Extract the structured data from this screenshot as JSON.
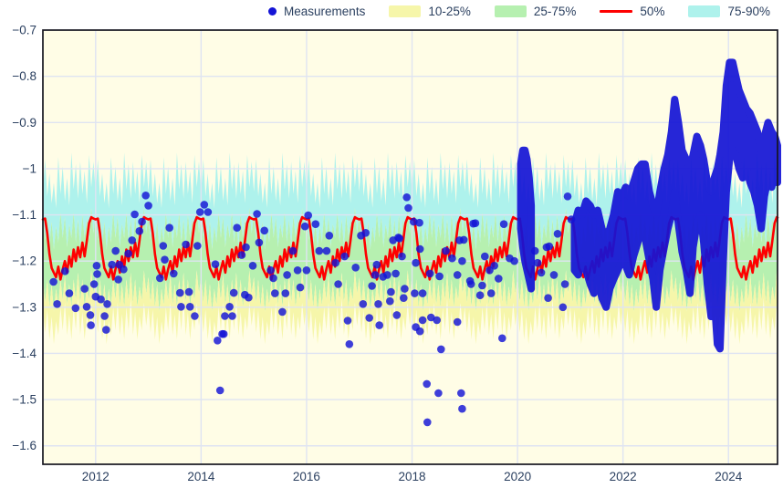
{
  "chart_data": {
    "type": "scatter",
    "title": "",
    "xlabel": "",
    "ylabel": "",
    "xlim": [
      2011.0,
      2024.93
    ],
    "ylim": [
      -1.64,
      -0.7
    ],
    "grid": true,
    "legend_position": "top",
    "xticks": [
      {
        "v": 2012,
        "label": "2012"
      },
      {
        "v": 2014,
        "label": "2014"
      },
      {
        "v": 2016,
        "label": "2016"
      },
      {
        "v": 2018,
        "label": "2018"
      },
      {
        "v": 2020,
        "label": "2020"
      },
      {
        "v": 2022,
        "label": "2022"
      },
      {
        "v": 2024,
        "label": "2024"
      }
    ],
    "yticks": [
      {
        "v": -0.7,
        "label": "−0.7"
      },
      {
        "v": -0.8,
        "label": "−0.8"
      },
      {
        "v": -0.9,
        "label": "−0.9"
      },
      {
        "v": -1.0,
        "label": "−1"
      },
      {
        "v": -1.1,
        "label": "−1.1"
      },
      {
        "v": -1.2,
        "label": "−1.2"
      },
      {
        "v": -1.3,
        "label": "−1.3"
      },
      {
        "v": -1.4,
        "label": "−1.4"
      },
      {
        "v": -1.5,
        "label": "−1.5"
      },
      {
        "v": -1.6,
        "label": "−1.6"
      }
    ],
    "legend": [
      {
        "label": "Measurements",
        "type": "marker",
        "color_key": "measurements"
      },
      {
        "label": "10-25%",
        "type": "band",
        "color_key": "band_10_25"
      },
      {
        "label": "25-75%",
        "type": "band",
        "color_key": "band_25_75"
      },
      {
        "label": "50%",
        "type": "line",
        "color_key": "median"
      },
      {
        "label": "75-90%",
        "type": "band",
        "color_key": "band_75_90"
      }
    ],
    "colors": {
      "plot_bg": "#fffde6",
      "grid": "#dfe4f2",
      "border": "#16161f",
      "tick_text": "#2a3f5f",
      "measurements": "#1414d6",
      "band_10_25": "#f6f6aa",
      "band_25_75": "#b6f0b0",
      "median": "#fe0000",
      "band_75_90": "#aef2ec"
    },
    "climatology": {
      "description": "Seasonal percentile climatology, repeated every calendar year 2011-2025; 24 samples per year starting Jan 1",
      "samples_per_year": 24,
      "p10": [
        -1.3,
        -1.355,
        -1.305,
        -1.37,
        -1.32,
        -1.38,
        -1.33,
        -1.36,
        -1.3,
        -1.35,
        -1.29,
        -1.36,
        -1.315,
        -1.37,
        -1.3,
        -1.35,
        -1.28,
        -1.36,
        -1.31,
        -1.37,
        -1.32,
        -1.35,
        -1.29,
        -1.34
      ],
      "p25": [
        -1.235,
        -1.29,
        -1.24,
        -1.3,
        -1.25,
        -1.31,
        -1.26,
        -1.295,
        -1.24,
        -1.285,
        -1.23,
        -1.295,
        -1.25,
        -1.3,
        -1.24,
        -1.285,
        -1.225,
        -1.29,
        -1.24,
        -1.3,
        -1.255,
        -1.285,
        -1.22,
        -1.27
      ],
      "p50": [
        -1.11,
        -1.108,
        -1.14,
        -1.185,
        -1.215,
        -1.225,
        -1.235,
        -1.212,
        -1.24,
        -1.218,
        -1.2,
        -1.225,
        -1.19,
        -1.212,
        -1.175,
        -1.2,
        -1.17,
        -1.192,
        -1.16,
        -1.19,
        -1.155,
        -1.118,
        -1.105,
        -1.108
      ],
      "p75": [
        -1.1,
        -1.155,
        -1.105,
        -1.165,
        -1.115,
        -1.175,
        -1.125,
        -1.16,
        -1.095,
        -1.15,
        -1.105,
        -1.17,
        -1.12,
        -1.15,
        -1.095,
        -1.16,
        -1.11,
        -1.17,
        -1.1,
        -1.15,
        -1.11,
        -1.155,
        -1.085,
        -1.14
      ],
      "p90": [
        -1.05,
        -0.98,
        -1.06,
        -1.01,
        -1.075,
        -1.03,
        -1.085,
        -0.975,
        -1.055,
        -0.995,
        -1.07,
        -1.02,
        -1.08,
        -0.965,
        -1.045,
        -0.99,
        -1.065,
        -0.985,
        -1.055,
        -1.005,
        -1.075,
        -0.97,
        -1.04,
        -0.985
      ]
    },
    "measurements_sparse": [
      [
        2011.2,
        -1.245
      ],
      [
        2011.27,
        -1.293
      ],
      [
        2011.42,
        -1.222
      ],
      [
        2011.5,
        -1.27
      ],
      [
        2011.62,
        -1.302
      ],
      [
        2011.79,
        -1.26
      ],
      [
        2011.83,
        -1.299
      ],
      [
        2011.9,
        -1.317
      ],
      [
        2011.91,
        -1.339
      ],
      [
        2011.97,
        -1.25
      ],
      [
        2012.0,
        -1.277
      ],
      [
        2012.02,
        -1.21
      ],
      [
        2012.03,
        -1.228
      ],
      [
        2012.1,
        -1.283
      ],
      [
        2012.17,
        -1.319
      ],
      [
        2012.2,
        -1.349
      ],
      [
        2012.22,
        -1.293
      ],
      [
        2012.31,
        -1.208
      ],
      [
        2012.38,
        -1.178
      ],
      [
        2012.43,
        -1.24
      ],
      [
        2012.45,
        -1.208
      ],
      [
        2012.53,
        -1.218
      ],
      [
        2012.62,
        -1.184
      ],
      [
        2012.69,
        -1.155
      ],
      [
        2012.74,
        -1.099
      ],
      [
        2012.83,
        -1.135
      ],
      [
        2012.88,
        -1.115
      ],
      [
        2012.95,
        -1.058
      ],
      [
        2013.0,
        -1.08
      ],
      [
        2013.22,
        -1.237
      ],
      [
        2013.28,
        -1.167
      ],
      [
        2013.31,
        -1.197
      ],
      [
        2013.4,
        -1.128
      ],
      [
        2013.48,
        -1.227
      ],
      [
        2013.6,
        -1.269
      ],
      [
        2013.62,
        -1.299
      ],
      [
        2013.71,
        -1.164
      ],
      [
        2013.77,
        -1.267
      ],
      [
        2013.79,
        -1.299
      ],
      [
        2013.88,
        -1.319
      ],
      [
        2013.93,
        -1.167
      ],
      [
        2013.98,
        -1.094
      ],
      [
        2014.06,
        -1.078
      ],
      [
        2014.13,
        -1.094
      ],
      [
        2014.27,
        -1.207
      ],
      [
        2014.31,
        -1.372
      ],
      [
        2014.36,
        -1.48
      ],
      [
        2014.4,
        -1.358
      ],
      [
        2014.43,
        -1.358
      ],
      [
        2014.45,
        -1.319
      ],
      [
        2014.54,
        -1.299
      ],
      [
        2014.59,
        -1.319
      ],
      [
        2014.62,
        -1.269
      ],
      [
        2014.68,
        -1.128
      ],
      [
        2014.77,
        -1.187
      ],
      [
        2014.83,
        -1.273
      ],
      [
        2014.85,
        -1.17
      ],
      [
        2014.9,
        -1.279
      ],
      [
        2014.98,
        -1.21
      ],
      [
        2015.06,
        -1.098
      ],
      [
        2015.1,
        -1.16
      ],
      [
        2015.2,
        -1.134
      ],
      [
        2015.32,
        -1.22
      ],
      [
        2015.37,
        -1.237
      ],
      [
        2015.4,
        -1.27
      ],
      [
        2015.54,
        -1.31
      ],
      [
        2015.6,
        -1.27
      ],
      [
        2015.63,
        -1.23
      ],
      [
        2015.74,
        -1.178
      ],
      [
        2015.83,
        -1.22
      ],
      [
        2015.88,
        -1.257
      ],
      [
        2015.97,
        -1.125
      ],
      [
        2016.0,
        -1.22
      ],
      [
        2016.03,
        -1.101
      ],
      [
        2016.17,
        -1.12
      ],
      [
        2016.24,
        -1.178
      ],
      [
        2016.38,
        -1.178
      ],
      [
        2016.43,
        -1.145
      ],
      [
        2016.55,
        -1.204
      ],
      [
        2016.6,
        -1.25
      ],
      [
        2016.72,
        -1.19
      ],
      [
        2016.78,
        -1.329
      ],
      [
        2016.81,
        -1.38
      ],
      [
        2016.93,
        -1.214
      ],
      [
        2017.03,
        -1.145
      ],
      [
        2017.07,
        -1.293
      ],
      [
        2017.12,
        -1.139
      ],
      [
        2017.19,
        -1.323
      ],
      [
        2017.24,
        -1.254
      ],
      [
        2017.3,
        -1.23
      ],
      [
        2017.33,
        -1.208
      ],
      [
        2017.36,
        -1.293
      ],
      [
        2017.38,
        -1.339
      ],
      [
        2017.45,
        -1.234
      ],
      [
        2017.53,
        -1.23
      ],
      [
        2017.58,
        -1.287
      ],
      [
        2017.6,
        -1.267
      ],
      [
        2017.64,
        -1.155
      ],
      [
        2017.69,
        -1.227
      ],
      [
        2017.71,
        -1.317
      ],
      [
        2017.74,
        -1.149
      ],
      [
        2017.76,
        -1.151
      ],
      [
        2017.81,
        -1.19
      ],
      [
        2017.84,
        -1.28
      ],
      [
        2017.86,
        -1.26
      ],
      [
        2017.9,
        -1.062
      ],
      [
        2017.93,
        -1.085
      ],
      [
        2018.03,
        -1.115
      ],
      [
        2018.05,
        -1.27
      ],
      [
        2018.07,
        -1.204
      ],
      [
        2018.07,
        -1.343
      ],
      [
        2018.14,
        -1.117
      ],
      [
        2018.15,
        -1.174
      ],
      [
        2018.15,
        -1.352
      ],
      [
        2018.2,
        -1.27
      ],
      [
        2018.2,
        -1.328
      ],
      [
        2018.28,
        -1.466
      ],
      [
        2018.29,
        -1.549
      ],
      [
        2018.34,
        -1.227
      ],
      [
        2018.36,
        -1.322
      ],
      [
        2018.47,
        -1.328
      ],
      [
        2018.5,
        -1.486
      ],
      [
        2018.52,
        -1.233
      ],
      [
        2018.55,
        -1.391
      ],
      [
        2018.64,
        -1.178
      ],
      [
        2018.76,
        -1.194
      ],
      [
        2018.86,
        -1.23
      ],
      [
        2018.86,
        -1.332
      ],
      [
        2018.9,
        -1.155
      ],
      [
        2018.93,
        -1.486
      ],
      [
        2018.95,
        -1.2
      ],
      [
        2018.95,
        -1.52
      ],
      [
        2018.98,
        -1.154
      ],
      [
        2019.1,
        -1.243
      ],
      [
        2019.12,
        -1.25
      ],
      [
        2019.16,
        -1.119
      ],
      [
        2019.2,
        -1.118
      ],
      [
        2019.29,
        -1.274
      ],
      [
        2019.33,
        -1.253
      ],
      [
        2019.38,
        -1.19
      ],
      [
        2019.47,
        -1.22
      ],
      [
        2019.5,
        -1.27
      ],
      [
        2019.56,
        -1.21
      ],
      [
        2019.64,
        -1.238
      ],
      [
        2019.71,
        -1.367
      ],
      [
        2019.74,
        -1.12
      ],
      [
        2019.85,
        -1.194
      ],
      [
        2019.94,
        -1.2
      ],
      [
        2020.33,
        -1.178
      ],
      [
        2020.38,
        -1.204
      ],
      [
        2020.45,
        -1.225
      ],
      [
        2020.55,
        -1.17
      ],
      [
        2020.58,
        -1.28
      ],
      [
        2020.6,
        -1.168
      ],
      [
        2020.69,
        -1.23
      ],
      [
        2020.76,
        -1.141
      ],
      [
        2020.86,
        -1.3
      ],
      [
        2020.9,
        -1.25
      ],
      [
        2020.95,
        -1.06
      ],
      [
        2021.02,
        -1.11
      ]
    ],
    "measurements_dense_runs": [
      [
        [
          2020.06,
          -0.99,
          -1.13
        ],
        [
          2020.1,
          -0.96,
          -1.17
        ],
        [
          2020.14,
          -0.96,
          -1.2
        ],
        [
          2020.18,
          -0.98,
          -1.22
        ],
        [
          2020.22,
          -1.02,
          -1.24
        ],
        [
          2020.26,
          -1.08,
          -1.26
        ]
      ],
      [
        [
          2021.08,
          -1.12,
          -1.22
        ],
        [
          2021.15,
          -1.09,
          -1.23
        ],
        [
          2021.22,
          -1.1,
          -1.2
        ],
        [
          2021.3,
          -1.07,
          -1.22
        ],
        [
          2021.38,
          -1.08,
          -1.25
        ],
        [
          2021.45,
          -1.1,
          -1.27
        ],
        [
          2021.52,
          -1.09,
          -1.24
        ],
        [
          2021.6,
          -1.13,
          -1.28
        ],
        [
          2021.68,
          -1.15,
          -1.3
        ],
        [
          2021.75,
          -1.13,
          -1.26
        ],
        [
          2021.82,
          -1.1,
          -1.24
        ],
        [
          2021.9,
          -1.05,
          -1.22
        ],
        [
          2021.97,
          -1.06,
          -1.2
        ],
        [
          2022.05,
          -1.04,
          -1.21
        ],
        [
          2022.12,
          -1.06,
          -1.23
        ],
        [
          2022.2,
          -1.03,
          -1.19
        ],
        [
          2022.28,
          -1.0,
          -1.16
        ],
        [
          2022.35,
          -0.99,
          -1.13
        ],
        [
          2022.42,
          -0.99,
          -1.15
        ],
        [
          2022.5,
          -1.05,
          -1.2
        ],
        [
          2022.57,
          -1.08,
          -1.24
        ],
        [
          2022.63,
          -1.1,
          -1.3
        ],
        [
          2022.7,
          -1.05,
          -1.22
        ],
        [
          2022.78,
          -1.0,
          -1.17
        ],
        [
          2022.85,
          -0.97,
          -1.13
        ],
        [
          2022.92,
          -0.92,
          -1.1
        ],
        [
          2022.98,
          -0.85,
          -1.05
        ],
        [
          2023.05,
          -0.9,
          -1.12
        ],
        [
          2023.12,
          -0.96,
          -1.18
        ],
        [
          2023.2,
          -0.98,
          -1.22
        ],
        [
          2023.27,
          -1.0,
          -1.27
        ],
        [
          2023.33,
          -0.97,
          -1.17
        ],
        [
          2023.4,
          -0.93,
          -1.12
        ],
        [
          2023.47,
          -0.95,
          -1.1
        ],
        [
          2023.53,
          -0.98,
          -1.16
        ],
        [
          2023.6,
          -1.03,
          -1.25
        ],
        [
          2023.67,
          -1.05,
          -1.32
        ],
        [
          2023.73,
          -1.02,
          -1.28
        ],
        [
          2023.79,
          -1.0,
          -1.38
        ],
        [
          2023.84,
          -0.97,
          -1.39
        ],
        [
          2023.9,
          -0.92,
          -1.2
        ],
        [
          2023.96,
          -0.82,
          -1.05
        ],
        [
          2024.02,
          -0.77,
          -0.98
        ],
        [
          2024.08,
          -0.77,
          -0.96
        ],
        [
          2024.14,
          -0.8,
          -0.97
        ],
        [
          2024.2,
          -0.83,
          -1.0
        ],
        [
          2024.27,
          -0.85,
          -1.02
        ],
        [
          2024.34,
          -0.87,
          -1.0
        ],
        [
          2024.41,
          -0.88,
          -1.03
        ],
        [
          2024.48,
          -0.9,
          -1.05
        ],
        [
          2024.55,
          -0.92,
          -1.08
        ],
        [
          2024.62,
          -0.96,
          -1.13
        ],
        [
          2024.68,
          -0.93,
          -1.06
        ],
        [
          2024.75,
          -0.9,
          -1.02
        ],
        [
          2024.82,
          -0.92,
          -1.04
        ],
        [
          2024.88,
          -0.93,
          -1.01
        ],
        [
          2024.93,
          -0.95,
          -1.03
        ]
      ]
    ]
  }
}
